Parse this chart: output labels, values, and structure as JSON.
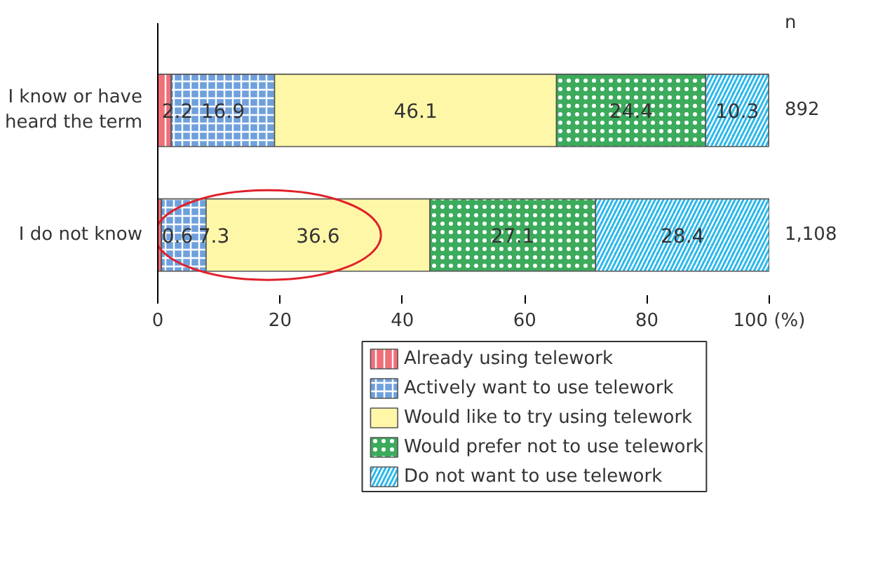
{
  "chart_data": {
    "type": "bar",
    "orientation": "horizontal",
    "stacked": true,
    "categories": [
      "I know or have heard the term",
      "I do not know"
    ],
    "series": [
      {
        "name": "Already using telework",
        "color": "#f07078",
        "values": [
          2.2,
          0.6
        ]
      },
      {
        "name": "Actively want to use telework",
        "color": "#6fa0dc",
        "values": [
          16.9,
          7.3
        ]
      },
      {
        "name": "Would like to try using telework",
        "color": "#fff7a8",
        "values": [
          46.1,
          36.6
        ]
      },
      {
        "name": "Would prefer not to use telework",
        "color": "#3cab5c",
        "values": [
          24.4,
          27.1
        ]
      },
      {
        "name": "Do not want to use telework",
        "color": "#2cb8ec",
        "values": [
          10.3,
          28.4
        ]
      }
    ],
    "xlim": [
      0,
      100
    ],
    "xticks": [
      0,
      20,
      40,
      60,
      80,
      {
        "value": 100,
        "label": "100 (%)"
      }
    ],
    "data_labels": true,
    "grid": false,
    "legend": "bottom",
    "annotations": [
      "n",
      "892",
      "1,108"
    ]
  }
}
